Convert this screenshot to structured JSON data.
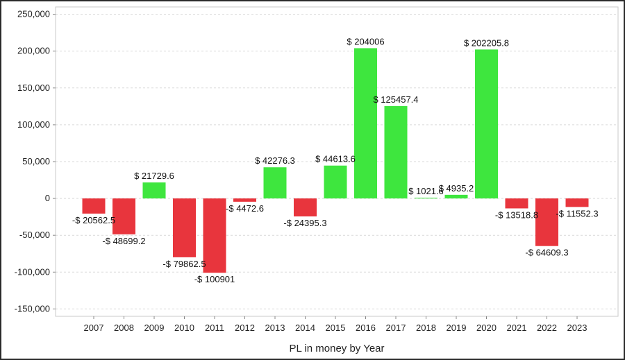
{
  "chart_data": {
    "type": "bar",
    "xlabel": "PL in money by Year",
    "ylabel": "",
    "ylim": [
      -160000,
      260000
    ],
    "yticks": [
      250000,
      200000,
      150000,
      100000,
      50000,
      0,
      -50000,
      -100000,
      -150000
    ],
    "ytick_labels": [
      "250,000",
      "200,000",
      "150,000",
      "100,000",
      "50,000",
      "0",
      "-50,000",
      "-100,000",
      "-150,000"
    ],
    "grid": true,
    "positive_color": "#3ee63e",
    "negative_color": "#e8353d",
    "categories": [
      "2007",
      "2008",
      "2009",
      "2010",
      "2011",
      "2012",
      "2013",
      "2014",
      "2015",
      "2016",
      "2017",
      "2018",
      "2019",
      "2020",
      "2021",
      "2022",
      "2023"
    ],
    "values": [
      -20562.5,
      -48699.2,
      21729.6,
      -79862.5,
      -100901,
      -4472.6,
      42276.3,
      -24395.3,
      44613.6,
      204006,
      125457.4,
      1021.6,
      4935.2,
      202205.8,
      -13518.8,
      -64609.3,
      -11552.3
    ],
    "labels": [
      "-$ 20562.5",
      "-$ 48699.2",
      "$ 21729.6",
      "-$ 79862.5",
      "-$ 100901",
      "-$ 4472.6",
      "$ 42276.3",
      "-$ 24395.3",
      "$ 44613.6",
      "$ 204006",
      "$ 125457.4",
      "$ 1021.6",
      "$ 4935.2",
      "$ 202205.8",
      "-$ 13518.8",
      "-$ 64609.3",
      "-$ 11552.3"
    ]
  }
}
